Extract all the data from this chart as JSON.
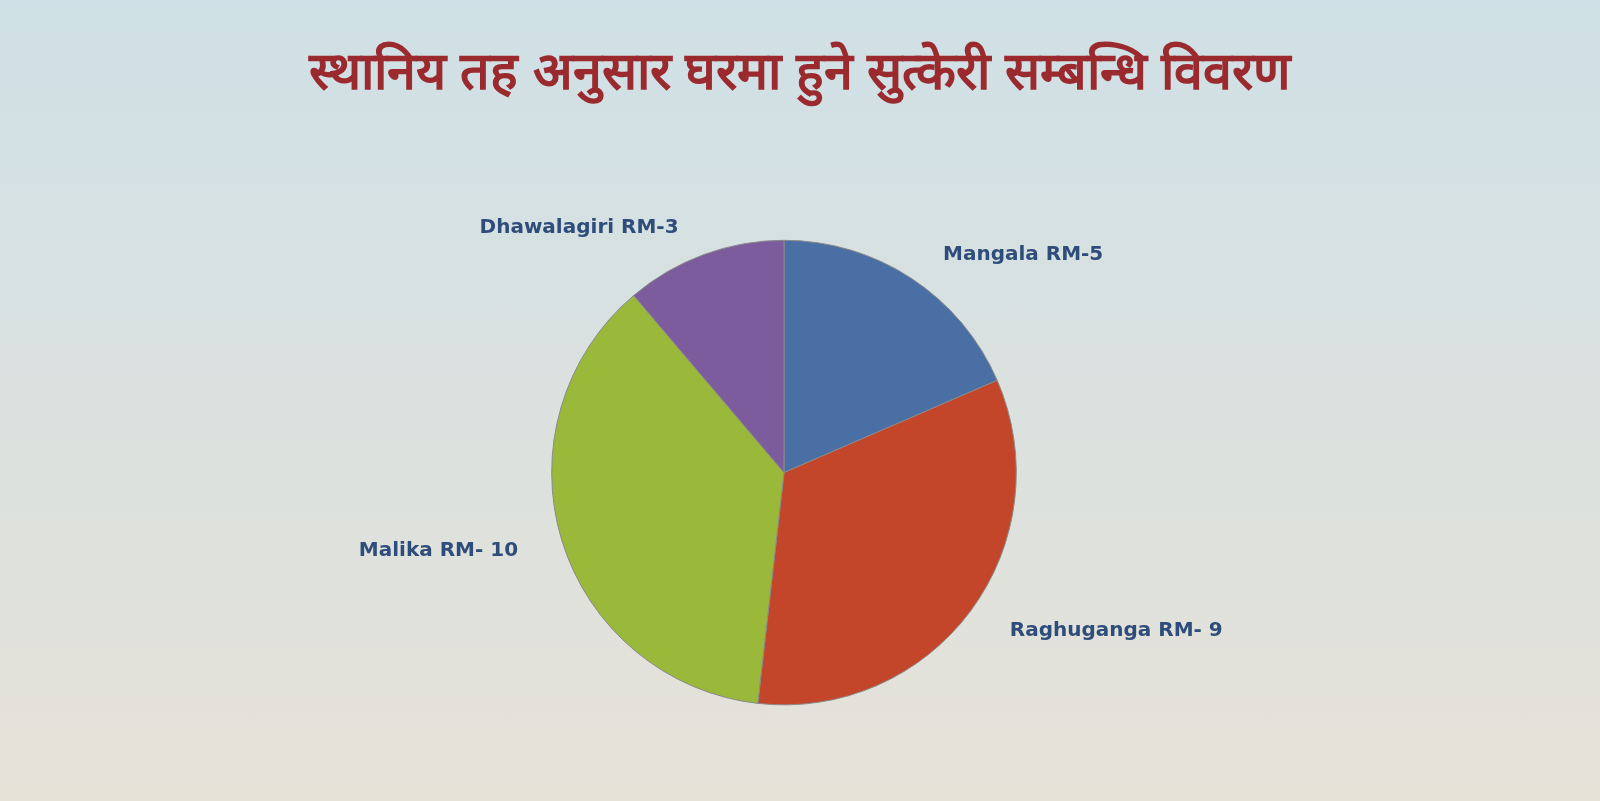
{
  "chart_data": {
    "type": "pie",
    "title": "स्थानिय तह अनुसार घरमा हुने सुत्केरी सम्बन्धि विवरण",
    "categories": [
      "Mangala RM-5",
      "Raghuganga RM- 9",
      "Malika RM- 10",
      "Dhawalagiri RM-3"
    ],
    "values": [
      18.5,
      33.3,
      37.0,
      11.2
    ],
    "colors": [
      "#4a6fa5",
      "#c4462a",
      "#9ab83a",
      "#7d5c9e"
    ],
    "legend": false
  }
}
